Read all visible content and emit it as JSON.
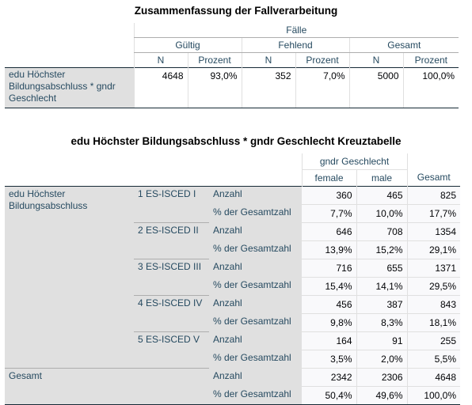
{
  "summary": {
    "title": "Zusammenfassung der Fallverarbeitung",
    "header_faelle": "Fälle",
    "groups": [
      "Gültig",
      "Fehlend",
      "Gesamt"
    ],
    "sub_n": "N",
    "sub_prozent": "Prozent",
    "row_label": "edu Höchster Bildungsabschluss * gndr Geschlecht",
    "values": [
      "4648",
      "93,0%",
      "352",
      "7,0%",
      "5000",
      "100,0%"
    ]
  },
  "crosstab": {
    "title": "edu Höchster Bildungsabschluss * gndr Geschlecht Kreuztabelle",
    "col_var": "gndr Geschlecht",
    "col_female": "female",
    "col_male": "male",
    "col_total": "Gesamt",
    "row_var": "edu Höchster Bildungsabschluss",
    "stat_count": "Anzahl",
    "stat_pct": "% der Gesamtzahl",
    "rows": [
      {
        "label": "1 ES-ISCED I",
        "count": [
          "360",
          "465",
          "825"
        ],
        "pct": [
          "7,7%",
          "10,0%",
          "17,7%"
        ]
      },
      {
        "label": "2 ES-ISCED II",
        "count": [
          "646",
          "708",
          "1354"
        ],
        "pct": [
          "13,9%",
          "15,2%",
          "29,1%"
        ]
      },
      {
        "label": "3 ES-ISCED III",
        "count": [
          "716",
          "655",
          "1371"
        ],
        "pct": [
          "15,4%",
          "14,1%",
          "29,5%"
        ]
      },
      {
        "label": "4 ES-ISCED IV",
        "count": [
          "456",
          "387",
          "843"
        ],
        "pct": [
          "9,8%",
          "8,3%",
          "18,1%"
        ]
      },
      {
        "label": "5 ES-ISCED V",
        "count": [
          "164",
          "91",
          "255"
        ],
        "pct": [
          "3,5%",
          "2,0%",
          "5,5%"
        ]
      }
    ],
    "total_label": "Gesamt",
    "total": {
      "count": [
        "2342",
        "2306",
        "4648"
      ],
      "pct": [
        "50,4%",
        "49,6%",
        "100,0%"
      ]
    }
  }
}
